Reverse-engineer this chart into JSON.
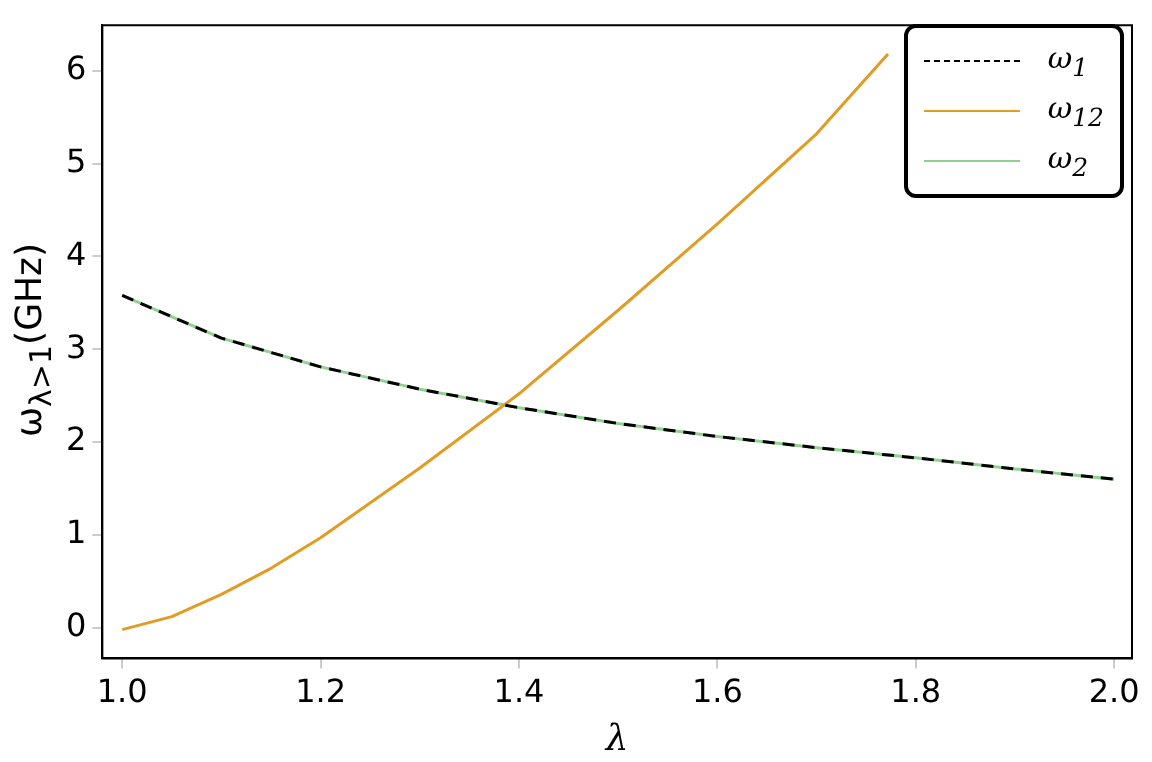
{
  "chart_data": {
    "type": "line",
    "xlabel": "λ",
    "ylabel": "ω$_{λ>1}$(GHz)",
    "xlim": [
      0.98,
      2.018
    ],
    "ylim": [
      -0.33,
      6.49
    ],
    "xticks": [
      {
        "value": 1,
        "label": "1.0"
      },
      {
        "value": 1.2,
        "label": "1.2"
      },
      {
        "value": 1.4,
        "label": "1.4"
      },
      {
        "value": 1.6,
        "label": "1.6"
      },
      {
        "value": 1.8,
        "label": "1.8"
      },
      {
        "value": 2,
        "label": "2.0"
      }
    ],
    "yticks": [
      0,
      1,
      2,
      3,
      4,
      5,
      6
    ],
    "grid": false,
    "legend": "top right",
    "marker": "none",
    "series": [
      {
        "name": "ω$_{1}$",
        "color": "#000000",
        "line_style": "dashed",
        "x": [
          1.0,
          1.1,
          1.2,
          1.3,
          1.4,
          1.5,
          1.6,
          1.7,
          1.8,
          1.9,
          2.0
        ],
        "values": [
          3.58,
          3.12,
          2.81,
          2.57,
          2.37,
          2.2,
          2.06,
          1.94,
          1.83,
          1.71,
          1.6
        ]
      },
      {
        "name": "ω$_{12}$",
        "color": "#e19c24",
        "line_style": "solid",
        "x": [
          1.0,
          1.05,
          1.1,
          1.15,
          1.2,
          1.3,
          1.4,
          1.5,
          1.6,
          1.7,
          1.772
        ],
        "values": [
          -0.02,
          0.12,
          0.36,
          0.64,
          0.97,
          1.72,
          2.52,
          3.42,
          4.35,
          5.32,
          6.18
        ]
      },
      {
        "name": "ω$_{2}$",
        "color": "#8fd18f",
        "line_style": "solid",
        "x": [
          1.0,
          1.1,
          1.2,
          1.3,
          1.4,
          1.5,
          1.6,
          1.7,
          1.8,
          1.9,
          2.0
        ],
        "values": [
          3.58,
          3.12,
          2.81,
          2.57,
          2.37,
          2.2,
          2.06,
          1.94,
          1.83,
          1.71,
          1.6
        ]
      }
    ]
  }
}
